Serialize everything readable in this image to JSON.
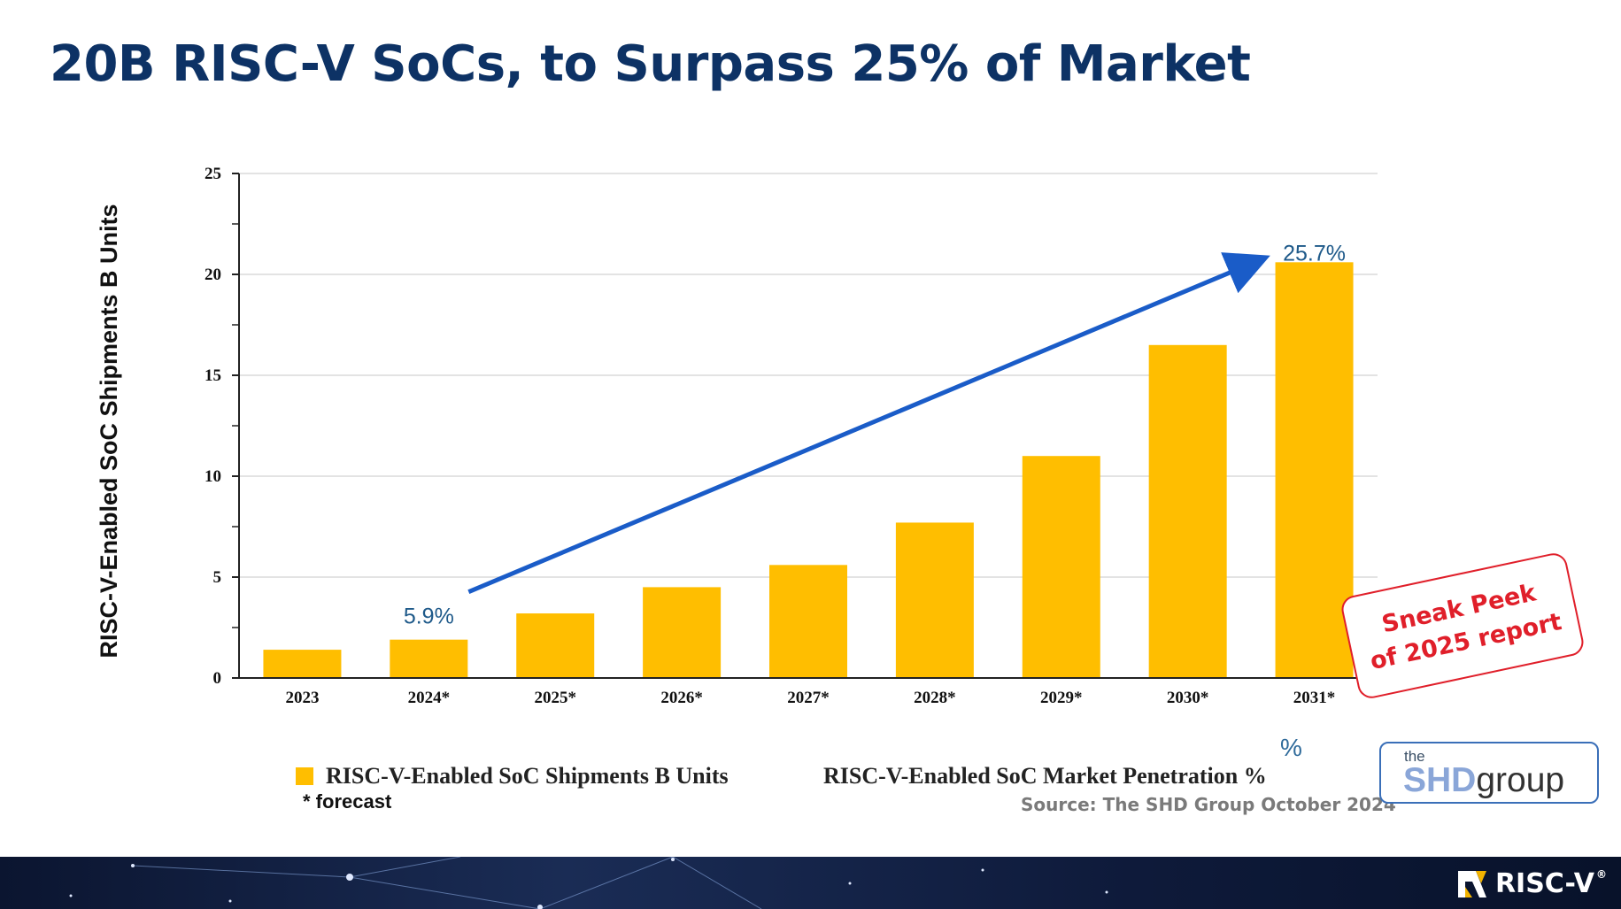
{
  "slide": {
    "title": "20B RISC-V SoCs, to Surpass 25% of Market"
  },
  "chart_data": {
    "type": "bar",
    "title": "",
    "ylabel": "RISC-V-Enabled SoC Shipments B Units",
    "xlabel": "",
    "ylim": [
      0,
      25
    ],
    "y_ticks": [
      "0",
      "5",
      "10",
      "15",
      "20",
      "25"
    ],
    "grid": true,
    "categories": [
      "2023",
      "2024*",
      "2025*",
      "2026*",
      "2027*",
      "2028*",
      "2029*",
      "2030*",
      "2031*"
    ],
    "series": [
      {
        "name": "RISC-V-Enabled SoC Shipments B Units",
        "color": "#ffbe00",
        "values": [
          1.4,
          1.9,
          3.2,
          4.5,
          5.6,
          7.7,
          11.0,
          16.5,
          20.6
        ]
      }
    ],
    "market_penetration_labels": [
      {
        "category": "2024*",
        "label": "5.9%"
      },
      {
        "category": "2031*",
        "label": "25.7%"
      }
    ],
    "legend": [
      {
        "label": "RISC-V-Enabled SoC Shipments B Units",
        "color": "#ffbe00"
      },
      {
        "label": "RISC-V-Enabled SoC Market Penetration %"
      }
    ]
  },
  "notes": {
    "forecast": "* forecast",
    "source": "Source: The SHD Group October 2024",
    "percent_symbol": "%"
  },
  "sneak_peek": {
    "line1": "Sneak Peek",
    "line2": "of 2025 report"
  },
  "shd_logo": {
    "the": "the",
    "shd": "SHD",
    "group": "group"
  },
  "footer": {
    "brand": "RISC-V",
    "registered": "®"
  },
  "colors": {
    "title": "#0d3265",
    "bar": "#ffbe00",
    "trend_arrow": "#1a5cc8",
    "pct_label": "#1f5a8a",
    "sneak": "#e01f2a"
  }
}
